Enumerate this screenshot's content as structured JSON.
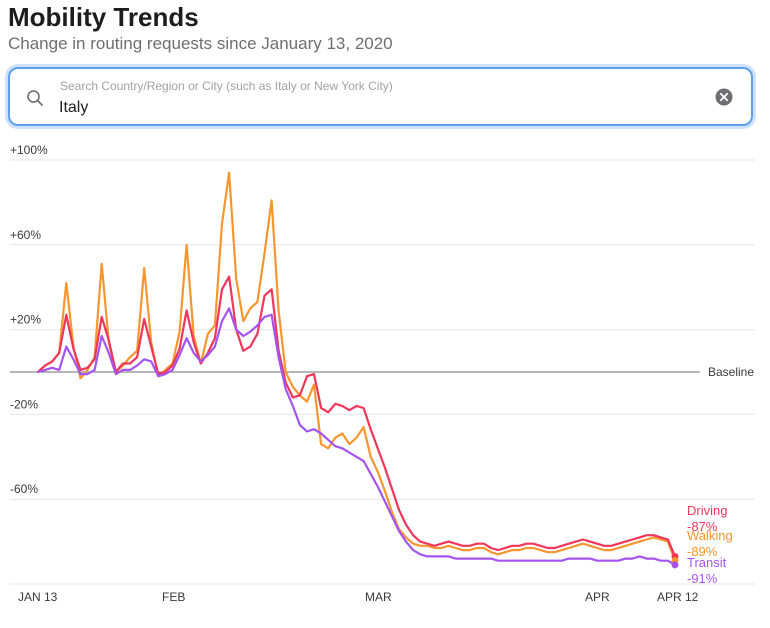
{
  "header": {
    "title": "Mobility Trends",
    "subtitle": "Change in routing requests since January 13, 2020"
  },
  "search": {
    "placeholder": "Search Country/Region or City (such as Italy or New York City)",
    "value": "Italy",
    "icon": "search-icon",
    "clear_icon": "clear-icon"
  },
  "chart_data": {
    "type": "line",
    "title": "",
    "xlabel": "",
    "ylabel": "",
    "ylim": [
      -100,
      100
    ],
    "y_ticks": [
      100,
      60,
      20,
      -20,
      -60
    ],
    "y_tick_labels": [
      "+100%",
      "+60%",
      "+20%",
      "-20%",
      "-60%"
    ],
    "x_ticks": [
      {
        "day": 0,
        "label": "JAN 13"
      },
      {
        "day": 19,
        "label": "FEB"
      },
      {
        "day": 48,
        "label": "MAR"
      },
      {
        "day": 79,
        "label": "APR"
      },
      {
        "day": 90,
        "label": "APR 12"
      }
    ],
    "baseline_label": "Baseline",
    "x_range": [
      0,
      90
    ],
    "grid": true,
    "series": [
      {
        "name": "Driving",
        "end_value": "-87%",
        "color": "#f0365a",
        "values": [
          0,
          3,
          5,
          9,
          27,
          11,
          1,
          2,
          6,
          26,
          15,
          0,
          4,
          4,
          7,
          25,
          12,
          -1,
          0,
          3,
          11,
          29,
          14,
          4,
          9,
          16,
          39,
          45,
          20,
          10,
          12,
          18,
          36,
          39,
          10,
          -5,
          -12,
          -11,
          -2,
          -1,
          -17,
          -19,
          -15,
          -16,
          -18,
          -16,
          -17,
          -27,
          -36,
          -45,
          -55,
          -65,
          -72,
          -77,
          -80,
          -81,
          -82,
          -81,
          -80,
          -81,
          -82,
          -82,
          -81,
          -81,
          -83,
          -84,
          -83,
          -82,
          -82,
          -81,
          -81,
          -82,
          -83,
          -83,
          -82,
          -81,
          -80,
          -79,
          -80,
          -81,
          -82,
          -82,
          -81,
          -80,
          -79,
          -78,
          -77,
          -77,
          -78,
          -79,
          -87
        ]
      },
      {
        "name": "Walking",
        "end_value": "-89%",
        "color": "#f5962e",
        "values": [
          0,
          3,
          5,
          9,
          42,
          12,
          -3,
          1,
          7,
          51,
          14,
          0,
          3,
          7,
          10,
          49,
          14,
          -2,
          1,
          4,
          19,
          60,
          17,
          4,
          18,
          22,
          70,
          94,
          44,
          24,
          30,
          33,
          56,
          81,
          29,
          0,
          -7,
          -11,
          -14,
          -6,
          -34,
          -36,
          -31,
          -29,
          -34,
          -31,
          -26,
          -40,
          -47,
          -56,
          -66,
          -74,
          -78,
          -81,
          -82,
          -82,
          -83,
          -83,
          -82,
          -83,
          -84,
          -84,
          -83,
          -83,
          -85,
          -86,
          -85,
          -84,
          -84,
          -83,
          -83,
          -84,
          -85,
          -85,
          -84,
          -83,
          -82,
          -81,
          -82,
          -83,
          -84,
          -84,
          -83,
          -82,
          -81,
          -80,
          -79,
          -78,
          -79,
          -80,
          -89
        ]
      },
      {
        "name": "Transit",
        "end_value": "-91%",
        "color": "#a454f0",
        "values": [
          0,
          1,
          2,
          1,
          12,
          6,
          -1,
          -1,
          1,
          17,
          9,
          -1,
          1,
          1,
          3,
          6,
          5,
          -2,
          -1,
          1,
          8,
          16,
          9,
          5,
          8,
          12,
          24,
          30,
          20,
          17,
          19,
          22,
          26,
          27,
          7,
          -8,
          -16,
          -25,
          -28,
          -27,
          -29,
          -32,
          -35,
          -36,
          -38,
          -40,
          -42,
          -48,
          -54,
          -61,
          -68,
          -75,
          -80,
          -84,
          -86,
          -87,
          -87,
          -87,
          -87,
          -88,
          -88,
          -88,
          -88,
          -88,
          -88,
          -89,
          -89,
          -89,
          -89,
          -89,
          -89,
          -89,
          -89,
          -89,
          -89,
          -88,
          -88,
          -88,
          -88,
          -89,
          -89,
          -89,
          -89,
          -88,
          -88,
          -87,
          -88,
          -88,
          -89,
          -89,
          -91
        ]
      }
    ]
  }
}
